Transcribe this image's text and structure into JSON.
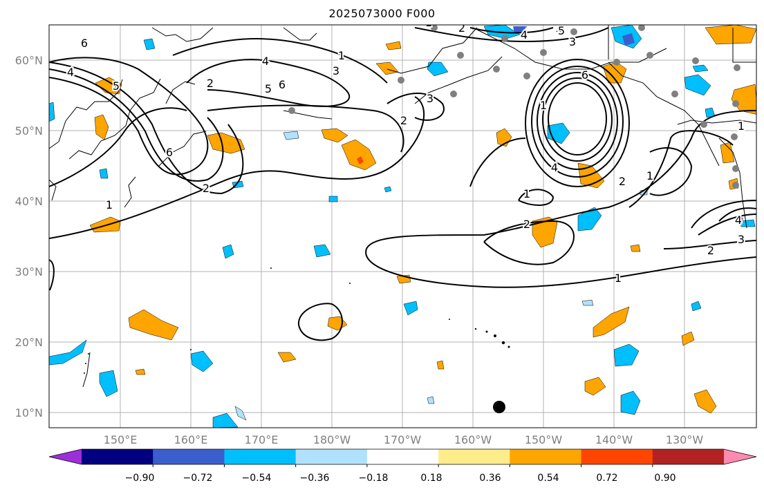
{
  "title": "2025073000 F000",
  "lat_labels": [
    "60°N",
    "50°N",
    "40°N",
    "30°N",
    "20°N",
    "10°N"
  ],
  "lon_labels": [
    "150°E",
    "160°E",
    "170°E",
    "180°W",
    "170°W",
    "160°W",
    "150°W",
    "140°W",
    "130°W"
  ],
  "contour_labels": [
    "6",
    "4",
    "5",
    "6",
    "2",
    "1",
    "2",
    "4",
    "3",
    "5",
    "6",
    "1",
    "3",
    "2",
    "1",
    "2",
    "1",
    "1",
    "6",
    "4",
    "5",
    "3",
    "4",
    "2",
    "1",
    "1",
    "1",
    "2",
    "4",
    "3",
    "2",
    "1"
  ],
  "colorbar": {
    "ticks": [
      "−0.90",
      "−0.72",
      "−0.54",
      "−0.36",
      "−0.18",
      "0.18",
      "0.36",
      "0.54",
      "0.72",
      "0.90"
    ],
    "colors": [
      "#9b30d8",
      "#000080",
      "#3a5fcd",
      "#00bfff",
      "#b0e2ff",
      "#ffffff",
      "#ffec8b",
      "#ffa500",
      "#ff4500",
      "#b22222",
      "#ff8ab0"
    ]
  }
}
